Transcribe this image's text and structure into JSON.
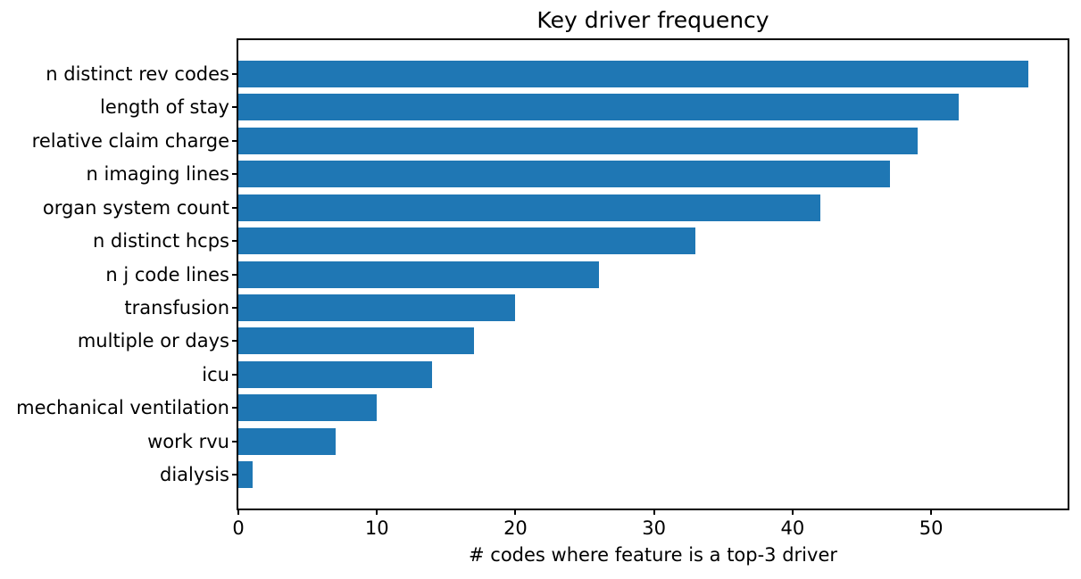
{
  "chart_data": {
    "type": "bar",
    "orientation": "horizontal",
    "title": "Key driver frequency",
    "xlabel": "# codes where feature is a top-3 driver",
    "ylabel": "",
    "categories": [
      "n distinct rev codes",
      "length of stay",
      "relative claim charge",
      "n imaging lines",
      "organ system count",
      "n distinct hcps",
      "n j code lines",
      "transfusion",
      "multiple or days",
      "icu",
      "mechanical ventilation",
      "work rvu",
      "dialysis"
    ],
    "values": [
      57,
      52,
      49,
      47,
      42,
      33,
      26,
      20,
      17,
      14,
      10,
      7,
      1
    ],
    "xticks": [
      0,
      10,
      20,
      30,
      40,
      50
    ],
    "xlim": [
      0,
      59.85
    ],
    "grid": false,
    "legend": null,
    "bar_color": "#1f77b4",
    "axis_color": "#000000",
    "text_color": "#000000",
    "background_color": "#ffffff"
  }
}
